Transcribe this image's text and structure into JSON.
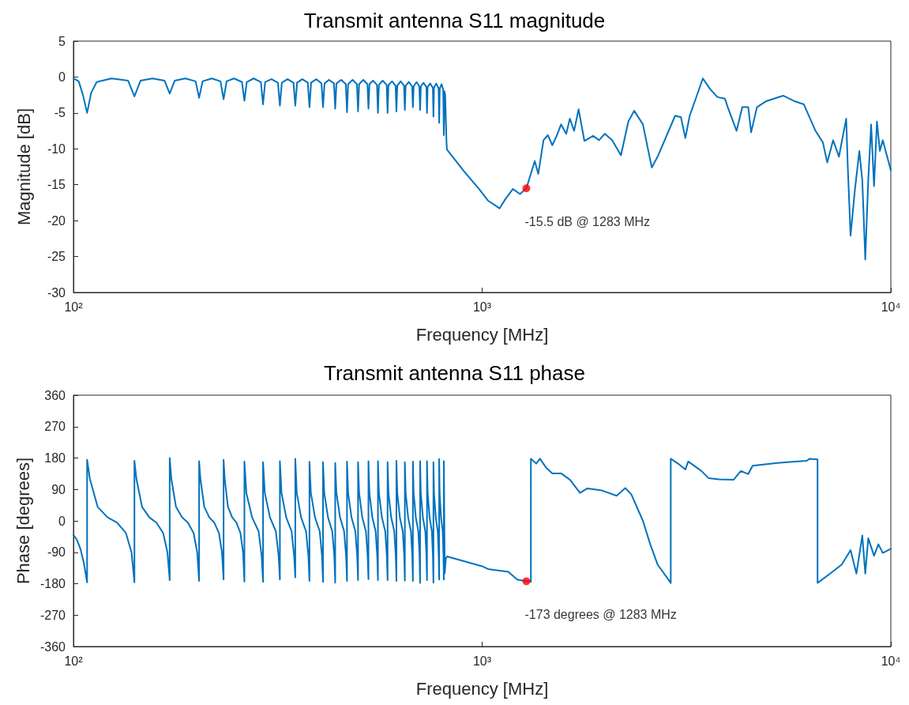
{
  "chart_data": [
    {
      "type": "line",
      "title": "Transmit antenna S11 magnitude",
      "xlabel": "Frequency [MHz]",
      "ylabel": "Magnitude [dB]",
      "log": "x",
      "xlim": [
        100,
        10000
      ],
      "xticks": [
        {
          "value": 100,
          "label": "10²"
        },
        {
          "value": 1000,
          "label": "10³"
        },
        {
          "value": 10000,
          "label": "10⁴"
        }
      ],
      "ylim": [
        -30,
        5
      ],
      "yticks": [
        -30,
        -25,
        -20,
        -15,
        -10,
        -5,
        0,
        5
      ],
      "series": [
        {
          "color": "#0072bd",
          "x": [
            100,
            103,
            105.5,
            108,
            110.5,
            114,
            124,
            136,
            141,
            146,
            156,
            167,
            172,
            177,
            188,
            199,
            203,
            207,
            218,
            229,
            233,
            237,
            247,
            258.5,
            262,
            265.5,
            276,
            287.5,
            291,
            294.5,
            305,
            316.5,
            320,
            323.5,
            334,
            345.5,
            349,
            352.5,
            363,
            374.5,
            378,
            381.5,
            393,
            404.5,
            408,
            411.5,
            422,
            434,
            437,
            440,
            452,
            464,
            467,
            470,
            482,
            494,
            497,
            500,
            512,
            524,
            527,
            530,
            541,
            553,
            556,
            559,
            571,
            584,
            587,
            590,
            602,
            614,
            617,
            620,
            632,
            644,
            647,
            650,
            662,
            674,
            677,
            680,
            691,
            702,
            705,
            708,
            719,
            730.5,
            733,
            735.5,
            746,
            757.5,
            760,
            762.5,
            772,
            782.5,
            785,
            787.5,
            796,
            803,
            806,
            809,
            812,
            818,
            820,
            905,
            983,
            1033,
            1103,
            1140,
            1189,
            1238,
            1283,
            1345,
            1372,
            1413,
            1448,
            1485,
            1522,
            1560,
            1606,
            1639,
            1679,
            1722,
            1779,
            1869,
            1932,
            1997,
            2081,
            2186,
            2279,
            2355,
            2474,
            2600,
            2687,
            2966,
            3065,
            3142,
            3220,
            3468,
            3614,
            3766,
            3925,
            3990,
            4193,
            4331,
            4478,
            4552,
            4704,
            4941,
            5457,
            5831,
            6124,
            6542,
            6818,
            6989,
            7224,
            7464,
            7777,
            7844,
            7970,
            8171,
            8374,
            8515,
            8659,
            8805,
            8949,
            9097,
            9247,
            9400,
            9557,
            10000
          ],
          "values": [
            -0.2,
            -0.6,
            -2.5,
            -5.0,
            -2.2,
            -0.7,
            -0.2,
            -0.5,
            -2.7,
            -0.5,
            -0.2,
            -0.5,
            -2.3,
            -0.5,
            -0.2,
            -0.6,
            -2.9,
            -0.6,
            -0.2,
            -0.6,
            -3.1,
            -0.6,
            -0.2,
            -0.7,
            -3.3,
            -0.7,
            -0.2,
            -0.7,
            -3.8,
            -0.7,
            -0.3,
            -0.8,
            -4.0,
            -0.8,
            -0.3,
            -0.8,
            -4.0,
            -0.8,
            -0.3,
            -0.8,
            -4.2,
            -0.8,
            -0.3,
            -0.9,
            -4.2,
            -0.9,
            -0.4,
            -0.9,
            -4.4,
            -0.9,
            -0.4,
            -1.0,
            -4.9,
            -1.0,
            -0.4,
            -1.0,
            -4.8,
            -1.0,
            -0.4,
            -1.0,
            -4.4,
            -1.0,
            -0.5,
            -1.1,
            -5.0,
            -1.1,
            -0.5,
            -1.1,
            -5.0,
            -1.1,
            -0.6,
            -1.2,
            -4.8,
            -1.2,
            -0.6,
            -1.2,
            -4.6,
            -1.2,
            -0.7,
            -1.3,
            -4.2,
            -1.3,
            -0.7,
            -1.3,
            -4.6,
            -1.3,
            -0.8,
            -1.4,
            -5.0,
            -1.4,
            -0.9,
            -1.5,
            -5.5,
            -1.5,
            -0.9,
            -1.6,
            -6.4,
            -1.6,
            -1.0,
            -1.8,
            -8.1,
            -2.0,
            -2.5,
            -9.0,
            -10.1,
            -13.2,
            -15.6,
            -17.2,
            -18.3,
            -17.0,
            -15.6,
            -16.3,
            -15.5,
            -11.7,
            -13.5,
            -8.8,
            -8.1,
            -9.5,
            -8.2,
            -6.6,
            -7.9,
            -5.8,
            -7.5,
            -4.5,
            -8.9,
            -8.2,
            -8.8,
            -7.9,
            -8.8,
            -10.9,
            -6.2,
            -4.7,
            -6.6,
            -12.6,
            -11.1,
            -5.4,
            -5.6,
            -8.5,
            -5.4,
            -0.2,
            -1.7,
            -2.8,
            -3.0,
            -4.2,
            -7.5,
            -4.2,
            -4.2,
            -7.7,
            -4.2,
            -3.4,
            -2.6,
            -3.4,
            -3.8,
            -7.5,
            -9.1,
            -11.9,
            -8.8,
            -11.1,
            -5.8,
            -12.3,
            -22.1,
            -15.6,
            -10.3,
            -14.4,
            -25.4,
            -14.4,
            -6.6,
            -15.2,
            -6.2,
            -10.3,
            -8.8,
            -13
          ]
        },
        {
          "type": "scatter",
          "color": "#ff0000",
          "marker": "circle",
          "x": [
            1283
          ],
          "values": [
            -15.5
          ]
        }
      ],
      "annotations": [
        {
          "text": "-15.5 dB @ 1283 MHz",
          "x": 1283,
          "y": -15.5
        }
      ]
    },
    {
      "type": "line",
      "title": "Transmit antenna S11 phase",
      "xlabel": "Frequency [MHz]",
      "ylabel": "Phase [degrees]",
      "log": "x",
      "xlim": [
        100,
        10000
      ],
      "xticks": [
        {
          "value": 100,
          "label": "10²"
        },
        {
          "value": 1000,
          "label": "10³"
        },
        {
          "value": 10000,
          "label": "10⁴"
        }
      ],
      "ylim": [
        -360,
        360
      ],
      "yticks": [
        -360,
        -270,
        -180,
        -90,
        0,
        90,
        180,
        270,
        360
      ],
      "series": [
        {
          "color": "#0072bd",
          "x": [
            100,
            102,
            104,
            106,
            108,
            108,
            109.7,
            114.6,
            121.2,
            127.8,
            134.4,
            138.7,
            141,
            141,
            142.6,
            147.2,
            153.4,
            159.6,
            165.8,
            169.8,
            172,
            172,
            173.6,
            178.2,
            184.4,
            190.6,
            196.8,
            200.8,
            203,
            203,
            204.5,
            209,
            215,
            221,
            227,
            230.9,
            233,
            233,
            234.5,
            238.8,
            244.6,
            250.4,
            256.2,
            260,
            262,
            262,
            264.9,
            273.6,
            283.8,
            288.7,
            291,
            291,
            293.9,
            302.6,
            312.8,
            317.7,
            320,
            320,
            322.9,
            331.6,
            341.8,
            346.7,
            349,
            349,
            351.9,
            360.6,
            370.8,
            375.7,
            378,
            378,
            381,
            390,
            400.5,
            405.6,
            408,
            408,
            410.9,
            419.6,
            429.8,
            434.7,
            437,
            437,
            440,
            449,
            459.5,
            464.6,
            467,
            467,
            470,
            479,
            489.5,
            494.6,
            497,
            497,
            500,
            509,
            519.5,
            524.6,
            527,
            527,
            529.9,
            538.6,
            548.8,
            553.7,
            556,
            556,
            559.1,
            568.4,
            579.3,
            584.5,
            587,
            587,
            590,
            599,
            609.5,
            614.6,
            617,
            617,
            620,
            629,
            639.5,
            644.6,
            647,
            647,
            650,
            659,
            669.5,
            674.6,
            677,
            677,
            679.8,
            688.2,
            698,
            702.8,
            705,
            705,
            707.8,
            716.2,
            726,
            730.8,
            733,
            733,
            735.7,
            743.8,
            753.3,
            757.8,
            760,
            760,
            762.5,
            770,
            778.8,
            783,
            785,
            785,
            787.1,
            793.4,
            800.8,
            804.3,
            806,
            806,
            810,
            815,
            820,
            1000,
            1033,
            1159,
            1218,
            1283,
            1312,
            1316,
            1316,
            1356,
            1385,
            1437,
            1485,
            1560,
            1639,
            1736,
            1809,
            1964,
            2133,
            2241,
            2317,
            2474,
            2578,
            2687,
            2879,
            2894,
            2894,
            3015,
            3142,
            3193,
            3439,
            3584,
            3798,
            4124,
            4297,
            4478,
            4590,
            5279,
            5831,
            6225,
            6328,
            6593,
            6617,
            6617,
            7102,
            7586,
            7970,
            8238,
            8515,
            8659,
            8805,
            9097,
            9322,
            9557,
            10000
          ],
          "values": [
            -40,
            -55,
            -80,
            -120,
            -176,
            175,
            120,
            40,
            10,
            -5,
            -35,
            -90,
            -176,
            172,
            120,
            40,
            10,
            -5,
            -35,
            -90,
            -170,
            180,
            120,
            40,
            10,
            -5,
            -35,
            -90,
            -172,
            171,
            120,
            40,
            10,
            -5,
            -35,
            -90,
            -168,
            175,
            120,
            40,
            10,
            -5,
            -35,
            -90,
            -174,
            170,
            80,
            10,
            -30,
            -100,
            -175,
            168,
            80,
            10,
            -30,
            -100,
            -168,
            171,
            80,
            10,
            -30,
            -100,
            -162,
            178,
            80,
            10,
            -30,
            -100,
            -172,
            169,
            80,
            10,
            -30,
            -100,
            -175,
            168,
            80,
            10,
            -30,
            -100,
            -177,
            166,
            80,
            10,
            -30,
            -100,
            -172,
            170,
            80,
            10,
            -30,
            -100,
            -170,
            168,
            80,
            10,
            -30,
            -100,
            -167,
            171,
            80,
            10,
            -30,
            -100,
            -170,
            171,
            80,
            10,
            -30,
            -100,
            -170,
            168,
            80,
            10,
            -30,
            -100,
            -172,
            172,
            80,
            10,
            -30,
            -100,
            -171,
            168,
            80,
            10,
            -30,
            -100,
            -172,
            170,
            80,
            10,
            -30,
            -100,
            -178,
            171,
            80,
            10,
            -30,
            -100,
            -170,
            171,
            80,
            10,
            -30,
            -100,
            -177,
            168,
            80,
            10,
            -30,
            -100,
            -168,
            177,
            80,
            10,
            -30,
            -100,
            -168,
            171,
            -150,
            -109,
            -102,
            -130,
            -138,
            -146,
            -168,
            -173,
            -172,
            -175,
            178,
            164,
            178,
            151,
            136,
            136,
            118,
            80,
            93,
            87,
            72,
            94,
            76,
            0,
            -67,
            -125,
            -174,
            -178,
            178,
            164,
            147,
            170,
            143,
            122,
            119,
            118,
            143,
            134,
            158,
            166,
            170,
            172,
            178,
            176,
            176,
            -178,
            -151,
            -125,
            -84,
            -151,
            -42,
            -151,
            -50,
            -100,
            -67,
            -92,
            -80
          ]
        },
        {
          "type": "scatter",
          "color": "#ff0000",
          "marker": "circle",
          "x": [
            1283
          ],
          "values": [
            -173
          ]
        }
      ],
      "annotations": [
        {
          "text": "-173 degrees @ 1283 MHz",
          "x": 1283,
          "y": -173
        }
      ]
    }
  ]
}
